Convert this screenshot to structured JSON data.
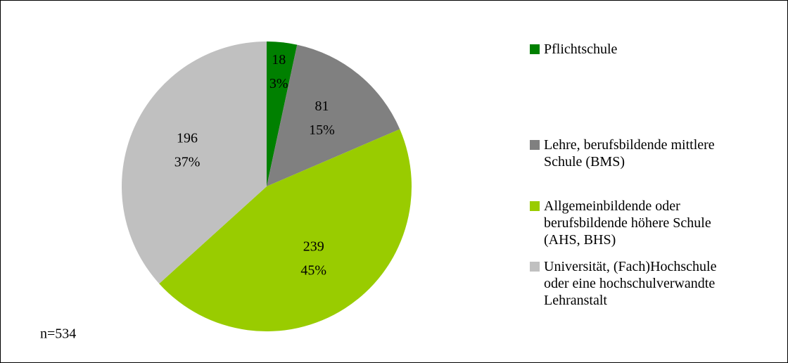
{
  "chart_data": {
    "type": "pie",
    "categories": [
      "Pflichtschule",
      "Lehre, berufsbildende mittlere\nSchule (BMS)",
      "Allgemeinbildende oder\nberufsbildende höhere Schule\n(AHS, BHS)",
      "Universität, (Fach)Hochschule\noder eine hochschulverwandte\nLehranstalt"
    ],
    "values": [
      18,
      81,
      239,
      196
    ],
    "percent_labels": [
      "3%",
      "15%",
      "45%",
      "37%"
    ],
    "colors": [
      "#008000",
      "#808080",
      "#99cc00",
      "#c0c0c0"
    ],
    "note": "n=534",
    "legend": "right"
  }
}
